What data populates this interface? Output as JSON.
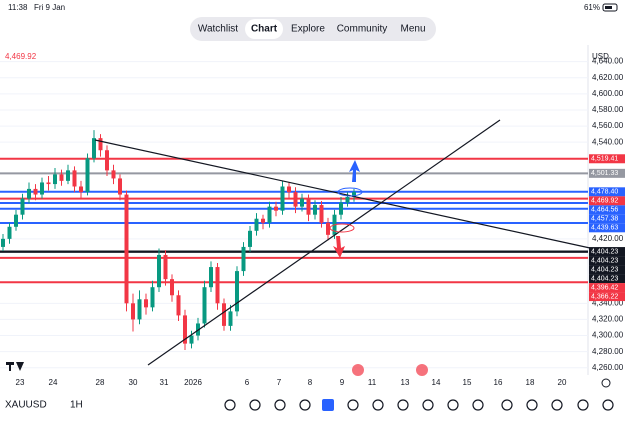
{
  "status": {
    "time": "11:38",
    "date": "Fri 9 Jan",
    "battery": "61%"
  },
  "nav": {
    "items": [
      "Watchlist",
      "Chart",
      "Explore",
      "Community",
      "Menu"
    ],
    "active": "Chart"
  },
  "symbol": "XAUUSD",
  "interval": "1H",
  "currency": "USD",
  "last_price_label": "4,469.92",
  "chart_data": {
    "type": "candlestick",
    "ylim": [
      4251.03,
      4660.62
    ],
    "yticks": [
      {
        "value": 4640,
        "label": "4,640.00"
      },
      {
        "value": 4620,
        "label": "4,620.00"
      },
      {
        "value": 4600,
        "label": "4,600.00"
      },
      {
        "value": 4580,
        "label": "4,580.00"
      },
      {
        "value": 4560,
        "label": "4,560.00"
      },
      {
        "value": 4540,
        "label": "4,540.00"
      },
      {
        "value": 4420,
        "label": "4,420.00"
      },
      {
        "value": 4340,
        "label": "4,340.00"
      },
      {
        "value": 4320,
        "label": "4,320.00"
      },
      {
        "value": 4300,
        "label": "4,300.00"
      },
      {
        "value": 4280,
        "label": "4,280.00"
      },
      {
        "value": 4260,
        "label": "4,260.00"
      }
    ],
    "x_labels": [
      "23",
      "24",
      "28",
      "30",
      "31",
      "2026",
      "6",
      "7",
      "8",
      "9",
      "11",
      "13",
      "14",
      "15",
      "16",
      "18",
      "20"
    ],
    "up_color": "#089981",
    "down_color": "#f23645",
    "candles": [
      [
        4410,
        4426,
        4405,
        4420
      ],
      [
        4420,
        4440,
        4414,
        4435
      ],
      [
        4435,
        4456,
        4430,
        4450
      ],
      [
        4450,
        4476,
        4444,
        4470
      ],
      [
        4470,
        4490,
        4464,
        4482
      ],
      [
        4482,
        4488,
        4468,
        4475
      ],
      [
        4475,
        4496,
        4470,
        4490
      ],
      [
        4490,
        4498,
        4480,
        4488
      ],
      [
        4488,
        4508,
        4482,
        4500
      ],
      [
        4500,
        4506,
        4486,
        4492
      ],
      [
        4492,
        4512,
        4488,
        4505
      ],
      [
        4505,
        4510,
        4478,
        4485
      ],
      [
        4485,
        4492,
        4470,
        4478
      ],
      [
        4478,
        4526,
        4474,
        4520
      ],
      [
        4520,
        4555,
        4515,
        4545
      ],
      [
        4545,
        4550,
        4522,
        4530
      ],
      [
        4530,
        4536,
        4498,
        4505
      ],
      [
        4505,
        4512,
        4488,
        4495
      ],
      [
        4495,
        4500,
        4468,
        4475
      ],
      [
        4475,
        4480,
        4330,
        4340
      ],
      [
        4340,
        4352,
        4305,
        4320
      ],
      [
        4320,
        4356,
        4314,
        4345
      ],
      [
        4345,
        4352,
        4326,
        4335
      ],
      [
        4335,
        4368,
        4330,
        4360
      ],
      [
        4360,
        4408,
        4354,
        4400
      ],
      [
        4400,
        4406,
        4362,
        4370
      ],
      [
        4370,
        4376,
        4342,
        4350
      ],
      [
        4350,
        4356,
        4318,
        4325
      ],
      [
        4325,
        4332,
        4282,
        4290
      ],
      [
        4290,
        4306,
        4284,
        4300
      ],
      [
        4300,
        4322,
        4294,
        4315
      ],
      [
        4315,
        4368,
        4310,
        4360
      ],
      [
        4360,
        4392,
        4354,
        4385
      ],
      [
        4385,
        4390,
        4332,
        4340
      ],
      [
        4340,
        4346,
        4306,
        4312
      ],
      [
        4312,
        4338,
        4306,
        4330
      ],
      [
        4330,
        4386,
        4324,
        4380
      ],
      [
        4380,
        4416,
        4374,
        4410
      ],
      [
        4410,
        4436,
        4404,
        4430
      ],
      [
        4430,
        4452,
        4424,
        4445
      ],
      [
        4445,
        4450,
        4432,
        4440
      ],
      [
        4440,
        4466,
        4434,
        4460
      ],
      [
        4460,
        4466,
        4448,
        4455
      ],
      [
        4455,
        4492,
        4450,
        4485
      ],
      [
        4485,
        4490,
        4470,
        4478
      ],
      [
        4478,
        4484,
        4452,
        4460
      ],
      [
        4460,
        4476,
        4454,
        4470
      ],
      [
        4470,
        4475,
        4442,
        4450
      ],
      [
        4450,
        4468,
        4444,
        4462
      ],
      [
        4462,
        4467,
        4434,
        4440
      ],
      [
        4440,
        4446,
        4418,
        4425
      ],
      [
        4425,
        4456,
        4420,
        4450
      ],
      [
        4450,
        4472,
        4444,
        4465
      ],
      [
        4465,
        4478,
        4460,
        4472
      ],
      [
        4472,
        4482,
        4466,
        4478
      ]
    ],
    "levels": [
      {
        "label": "4,519.41",
        "value": 4519.41,
        "color": "#f23645"
      },
      {
        "label": "4,501.33",
        "value": 4501.33,
        "color": "#9598a1"
      },
      {
        "label": "4,478.40",
        "value": 4478.4,
        "color": "#2962ff"
      },
      {
        "label": "4,469.92",
        "value": 4469.92,
        "color": "#f23645"
      },
      {
        "label": "4,464.56",
        "value": 4464.56,
        "color": "#2962ff"
      },
      {
        "label": "4,457.38",
        "value": 4457.38,
        "color": "#2962ff"
      },
      {
        "label": "4,439.63",
        "value": 4439.63,
        "color": "#2962ff"
      },
      {
        "label": "4,404.23",
        "value": 4404.23,
        "color": "#131722"
      },
      {
        "label": "4,404.23",
        "value": 4404.23,
        "color": "#131722"
      },
      {
        "label": "4,404.23",
        "value": 4404.23,
        "color": "#131722"
      },
      {
        "label": "4,404.23",
        "value": 4404.23,
        "color": "#131722"
      },
      {
        "label": "4,396.42",
        "value": 4396.42,
        "color": "#f23645"
      },
      {
        "label": "4,366.22",
        "value": 4366.22,
        "color": "#f23645"
      }
    ]
  }
}
